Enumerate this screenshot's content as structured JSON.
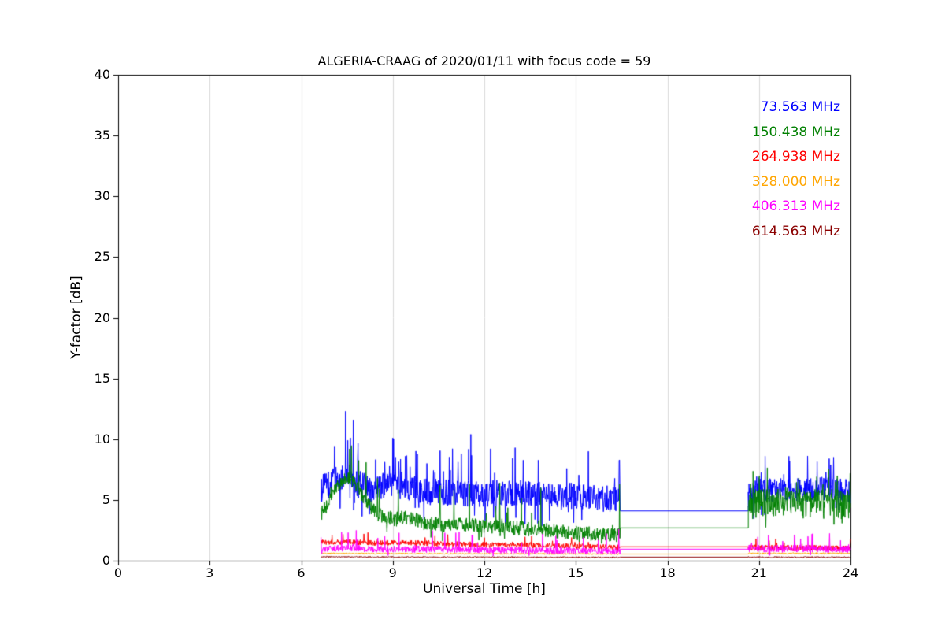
{
  "chart_data": {
    "type": "line",
    "title": "ALGERIA-CRAAG of 2020/01/11 with focus code = 59",
    "xlabel": "Universal Time [h]",
    "ylabel": "Y-factor [dB]",
    "xlim": [
      0,
      24
    ],
    "ylim": [
      0,
      40
    ],
    "xticks": [
      0,
      3,
      6,
      9,
      12,
      15,
      18,
      21,
      24
    ],
    "yticks": [
      0,
      5,
      10,
      15,
      20,
      25,
      30,
      35,
      40
    ],
    "grid": "vertical",
    "grid_color": "#d9d9d9",
    "axis_color": "#000000",
    "legend_position": "upper-right",
    "series": [
      {
        "name": "73.563 MHz",
        "color": "#0000ff",
        "segments": [
          {
            "type": "noisy",
            "x0": 6.65,
            "x1": 16.45,
            "amp": 1.1,
            "spike_prob": 0.05,
            "spike_amp": 2.6,
            "dip_prob": 0.04,
            "dip_amp": 1.5,
            "mean": [
              [
                6.65,
                5.8
              ],
              [
                6.8,
                6.3
              ],
              [
                7.1,
                6.6
              ],
              [
                7.5,
                7.0
              ],
              [
                7.9,
                6.3
              ],
              [
                8.3,
                6.0
              ],
              [
                8.7,
                6.2
              ],
              [
                9.1,
                6.4
              ],
              [
                9.6,
                6.0
              ],
              [
                10.2,
                5.7
              ],
              [
                11.0,
                5.6
              ],
              [
                12.0,
                5.5
              ],
              [
                13.0,
                5.6
              ],
              [
                14.0,
                5.4
              ],
              [
                15.0,
                5.3
              ],
              [
                16.0,
                5.1
              ],
              [
                16.45,
                5.2
              ]
            ],
            "peaks": [
              [
                7.45,
                12.3
              ],
              [
                7.7,
                11.6
              ],
              [
                9.0,
                10.1
              ],
              [
                11.55,
                10.4
              ],
              [
                13.0,
                9.3
              ],
              [
                15.4,
                9.0
              ],
              [
                16.42,
                8.3
              ]
            ]
          },
          {
            "type": "flat",
            "x0": 16.45,
            "x1": 20.65,
            "y": 4.1
          },
          {
            "type": "noisy",
            "x0": 20.65,
            "x1": 24.0,
            "amp": 1.0,
            "spike_prob": 0.04,
            "spike_amp": 2.2,
            "dip_prob": 0.03,
            "dip_amp": 1.2,
            "mean": [
              [
                20.65,
                5.3
              ],
              [
                21.0,
                5.9
              ],
              [
                21.5,
                5.7
              ],
              [
                22.0,
                5.9
              ],
              [
                22.5,
                5.7
              ],
              [
                23.0,
                5.9
              ],
              [
                23.5,
                5.8
              ],
              [
                24.0,
                5.7
              ]
            ],
            "peaks": [
              [
                21.2,
                8.6
              ],
              [
                22.0,
                8.2
              ],
              [
                23.3,
                8.4
              ]
            ]
          }
        ]
      },
      {
        "name": "150.438 MHz",
        "color": "#008000",
        "segments": [
          {
            "type": "noisy",
            "x0": 6.65,
            "x1": 16.45,
            "amp": 0.6,
            "spike_prob": 0.02,
            "spike_amp": 2.6,
            "dip_prob": 0.01,
            "dip_amp": 0.9,
            "mean": [
              [
                6.65,
                3.8
              ],
              [
                6.9,
                4.8
              ],
              [
                7.2,
                6.2
              ],
              [
                7.5,
                6.9
              ],
              [
                7.8,
                6.2
              ],
              [
                8.1,
                5.0
              ],
              [
                8.5,
                3.8
              ],
              [
                9.0,
                3.4
              ],
              [
                9.5,
                3.6
              ],
              [
                10.0,
                3.1
              ],
              [
                10.5,
                3.0
              ],
              [
                11.0,
                2.9
              ],
              [
                11.5,
                3.0
              ],
              [
                12.0,
                2.8
              ],
              [
                12.5,
                2.9
              ],
              [
                13.0,
                2.7
              ],
              [
                14.0,
                2.5
              ],
              [
                15.0,
                2.3
              ],
              [
                16.0,
                2.1
              ],
              [
                16.45,
                2.1
              ]
            ],
            "peaks": [
              [
                10.55,
                6.2
              ],
              [
                11.0,
                5.9
              ],
              [
                11.5,
                6.3
              ],
              [
                12.5,
                6.4
              ],
              [
                13.85,
                6.0
              ],
              [
                16.42,
                6.3
              ]
            ]
          },
          {
            "type": "flat",
            "x0": 16.45,
            "x1": 20.65,
            "y": 2.7
          },
          {
            "type": "noisy",
            "x0": 20.65,
            "x1": 24.0,
            "amp": 1.2,
            "spike_prob": 0.03,
            "spike_amp": 1.8,
            "dip_prob": 0.02,
            "dip_amp": 1.0,
            "mean": [
              [
                20.65,
                4.2
              ],
              [
                21.0,
                4.9
              ],
              [
                21.5,
                4.7
              ],
              [
                22.0,
                4.9
              ],
              [
                22.5,
                4.6
              ],
              [
                23.0,
                4.8
              ],
              [
                23.5,
                4.7
              ],
              [
                24.0,
                4.5
              ]
            ],
            "peaks": [
              [
                21.0,
                7.0
              ],
              [
                22.3,
                6.8
              ],
              [
                23.5,
                6.5
              ]
            ]
          }
        ]
      },
      {
        "name": "264.938 MHz",
        "color": "#ff0000",
        "segments": [
          {
            "type": "noisy",
            "x0": 6.65,
            "x1": 16.45,
            "amp": 0.22,
            "spike_prob": 0.02,
            "spike_amp": 0.7,
            "dip_prob": 0.01,
            "dip_amp": 0.3,
            "mean": [
              [
                6.65,
                1.5
              ],
              [
                7.5,
                1.55
              ],
              [
                8.5,
                1.45
              ],
              [
                9.5,
                1.5
              ],
              [
                10.5,
                1.4
              ],
              [
                11.5,
                1.35
              ],
              [
                12.5,
                1.3
              ],
              [
                13.5,
                1.3
              ],
              [
                14.5,
                1.25
              ],
              [
                15.5,
                1.15
              ],
              [
                16.45,
                1.1
              ]
            ],
            "peaks": [
              [
                7.0,
                2.1
              ],
              [
                12.0,
                1.9
              ]
            ]
          },
          {
            "type": "flat",
            "x0": 16.45,
            "x1": 20.65,
            "y": 1.15
          },
          {
            "type": "noisy",
            "x0": 20.65,
            "x1": 24.0,
            "amp": 0.25,
            "spike_prob": 0.02,
            "spike_amp": 0.6,
            "dip_prob": 0.01,
            "dip_amp": 0.3,
            "mean": [
              [
                20.65,
                1.1
              ],
              [
                22.0,
                1.05
              ],
              [
                24.0,
                1.0
              ]
            ],
            "peaks": []
          }
        ]
      },
      {
        "name": "328.000 MHz",
        "color": "#ffa500",
        "segments": [
          {
            "type": "noisy",
            "x0": 6.65,
            "x1": 16.45,
            "amp": 0.06,
            "spike_prob": 0.0,
            "spike_amp": 0,
            "dip_prob": 0.0,
            "dip_amp": 0,
            "mean": [
              [
                6.65,
                0.6
              ],
              [
                16.45,
                0.55
              ]
            ],
            "peaks": []
          },
          {
            "type": "flat",
            "x0": 16.45,
            "x1": 20.65,
            "y": 0.55
          },
          {
            "type": "noisy",
            "x0": 20.65,
            "x1": 24.0,
            "amp": 0.07,
            "spike_prob": 0.0,
            "spike_amp": 0,
            "dip_prob": 0.0,
            "dip_amp": 0,
            "mean": [
              [
                20.65,
                0.6
              ],
              [
                24.0,
                0.6
              ]
            ],
            "peaks": []
          }
        ]
      },
      {
        "name": "406.313 MHz",
        "color": "#ff00ff",
        "segments": [
          {
            "type": "noisy",
            "x0": 6.65,
            "x1": 16.45,
            "amp": 0.28,
            "spike_prob": 0.025,
            "spike_amp": 1.3,
            "dip_prob": 0.01,
            "dip_amp": 0.3,
            "mean": [
              [
                6.65,
                1.0
              ],
              [
                7.5,
                1.05
              ],
              [
                8.5,
                0.95
              ],
              [
                10.0,
                0.95
              ],
              [
                12.0,
                0.9
              ],
              [
                14.0,
                0.85
              ],
              [
                16.45,
                0.8
              ]
            ],
            "peaks": [
              [
                7.8,
                2.5
              ],
              [
                10.7,
                2.3
              ],
              [
                13.9,
                2.2
              ],
              [
                16.4,
                2.6
              ]
            ]
          },
          {
            "type": "flat",
            "x0": 16.45,
            "x1": 20.65,
            "y": 0.95
          },
          {
            "type": "noisy",
            "x0": 20.65,
            "x1": 24.0,
            "amp": 0.3,
            "spike_prob": 0.03,
            "spike_amp": 1.0,
            "dip_prob": 0.01,
            "dip_amp": 0.3,
            "mean": [
              [
                20.65,
                1.0
              ],
              [
                22.0,
                1.0
              ],
              [
                24.0,
                0.95
              ]
            ],
            "peaks": [
              [
                21.3,
                2.1
              ],
              [
                22.6,
                2.0
              ]
            ]
          }
        ]
      },
      {
        "name": "614.563 MHz",
        "color": "#8b0000",
        "segments": [
          {
            "type": "noisy",
            "x0": 6.65,
            "x1": 16.45,
            "amp": 0.05,
            "spike_prob": 0.0,
            "spike_amp": 0,
            "dip_prob": 0.0,
            "dip_amp": 0,
            "mean": [
              [
                6.65,
                0.32
              ],
              [
                16.45,
                0.28
              ]
            ],
            "peaks": []
          },
          {
            "type": "flat",
            "x0": 16.45,
            "x1": 20.65,
            "y": 0.3
          },
          {
            "type": "noisy",
            "x0": 20.65,
            "x1": 24.0,
            "amp": 0.05,
            "spike_prob": 0.0,
            "spike_amp": 0,
            "dip_prob": 0.0,
            "dip_amp": 0,
            "mean": [
              [
                20.65,
                0.3
              ],
              [
                24.0,
                0.3
              ]
            ],
            "peaks": []
          }
        ]
      }
    ]
  }
}
